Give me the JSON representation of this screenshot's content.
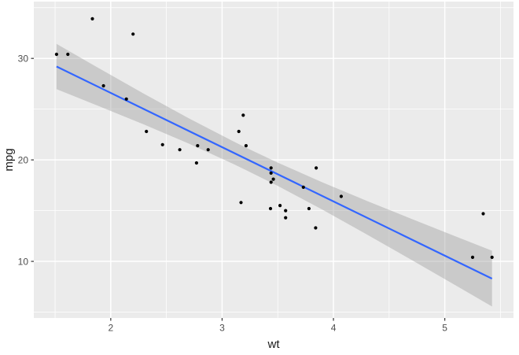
{
  "figure": {
    "background_color": "#ffffff",
    "panel_background_color": "#ebebeb",
    "grid_color": "#ffffff",
    "tick_mark_color": "#333333",
    "tick_label_color": "#4d4d4d",
    "axis_title_color": "#1a1a1a"
  },
  "chart_data": {
    "type": "scatter",
    "title": "",
    "xlabel": "wt",
    "ylabel": "mpg",
    "xlim": [
      1.309,
      5.617
    ],
    "ylim": [
      4.42,
      35.6
    ],
    "grid": "on",
    "legend": "none",
    "x_axis": {
      "major_ticks": [
        2,
        3,
        4,
        5
      ],
      "major_labels": [
        "2",
        "3",
        "4",
        "5"
      ],
      "minor_ticks": [
        1.5,
        2.5,
        3.5,
        4.5,
        5.5
      ]
    },
    "y_axis": {
      "major_ticks": [
        10,
        20,
        30
      ],
      "major_labels": [
        "10",
        "20",
        "30"
      ],
      "minor_ticks": [
        5,
        15,
        25,
        35
      ]
    },
    "points": {
      "color": "#000000",
      "radius": 2.1,
      "x": [
        2.62,
        2.875,
        2.32,
        3.215,
        3.44,
        3.46,
        3.57,
        3.19,
        3.15,
        3.44,
        3.44,
        4.07,
        3.73,
        3.78,
        5.25,
        5.424,
        5.345,
        2.2,
        1.615,
        1.835,
        2.465,
        3.52,
        3.435,
        3.84,
        3.845,
        1.935,
        2.14,
        1.513,
        3.17,
        2.77,
        3.57,
        2.78
      ],
      "y": [
        21.0,
        21.0,
        22.8,
        21.4,
        18.7,
        18.1,
        14.3,
        24.4,
        22.8,
        19.2,
        17.8,
        16.4,
        17.3,
        15.2,
        10.4,
        10.4,
        14.7,
        32.4,
        30.4,
        33.9,
        21.5,
        15.5,
        15.2,
        13.3,
        19.2,
        27.3,
        26.0,
        30.4,
        15.8,
        19.7,
        15.0,
        21.4
      ]
    },
    "trend_line": {
      "fit": "linear",
      "color": "#3366ff",
      "width": 2.2,
      "x": [
        1.513,
        5.424
      ],
      "y": [
        29.2,
        8.3
      ]
    },
    "confidence_band": {
      "color": "rgba(153,153,153,0.4)",
      "samples": [
        [
          1.513,
          26.97,
          31.43
        ],
        [
          1.9,
          25.27,
          28.99
        ],
        [
          2.3,
          23.48,
          26.51
        ],
        [
          2.7,
          21.61,
          24.1
        ],
        [
          3.1,
          19.61,
          21.83
        ],
        [
          3.217,
          18.99,
          21.19
        ],
        [
          3.5,
          17.44,
          19.73
        ],
        [
          3.9,
          15.1,
          17.79
        ],
        [
          4.3,
          12.65,
          15.96
        ],
        [
          4.7,
          10.15,
          14.19
        ],
        [
          5.1,
          7.62,
          12.45
        ],
        [
          5.424,
          5.55,
          11.05
        ]
      ]
    }
  }
}
